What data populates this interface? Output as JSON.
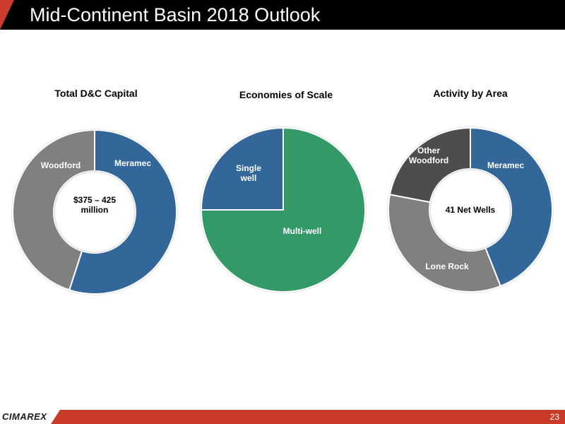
{
  "header": {
    "title": "Mid-Continent Basin 2018 Outlook"
  },
  "footer": {
    "logo": "CIMAREX",
    "page_number": "23"
  },
  "chart_data": [
    {
      "type": "pie",
      "donut": true,
      "title": "Total D&C Capital",
      "center_label": [
        "$375 – 425",
        "million"
      ],
      "slices": [
        {
          "label": "Meramec",
          "value": 55,
          "color": "#336699"
        },
        {
          "label": "Woodford",
          "value": 45,
          "color": "#808080"
        }
      ]
    },
    {
      "type": "pie",
      "donut": false,
      "title": "Economies of Scale",
      "slices": [
        {
          "label": "Multi-well",
          "value": 75,
          "color": "#339966"
        },
        {
          "label": [
            "Single",
            "well"
          ],
          "value": 25,
          "color": "#336699"
        }
      ]
    },
    {
      "type": "pie",
      "donut": true,
      "title": "Activity by Area",
      "center_label": [
        "41 Net Wells"
      ],
      "slices": [
        {
          "label": "Meramec",
          "value": 44,
          "color": "#336699"
        },
        {
          "label": "Lone Rock",
          "value": 34,
          "color": "#808080"
        },
        {
          "label": [
            "Other",
            "Woodford"
          ],
          "value": 22,
          "color": "#4d4d4d"
        }
      ]
    }
  ]
}
